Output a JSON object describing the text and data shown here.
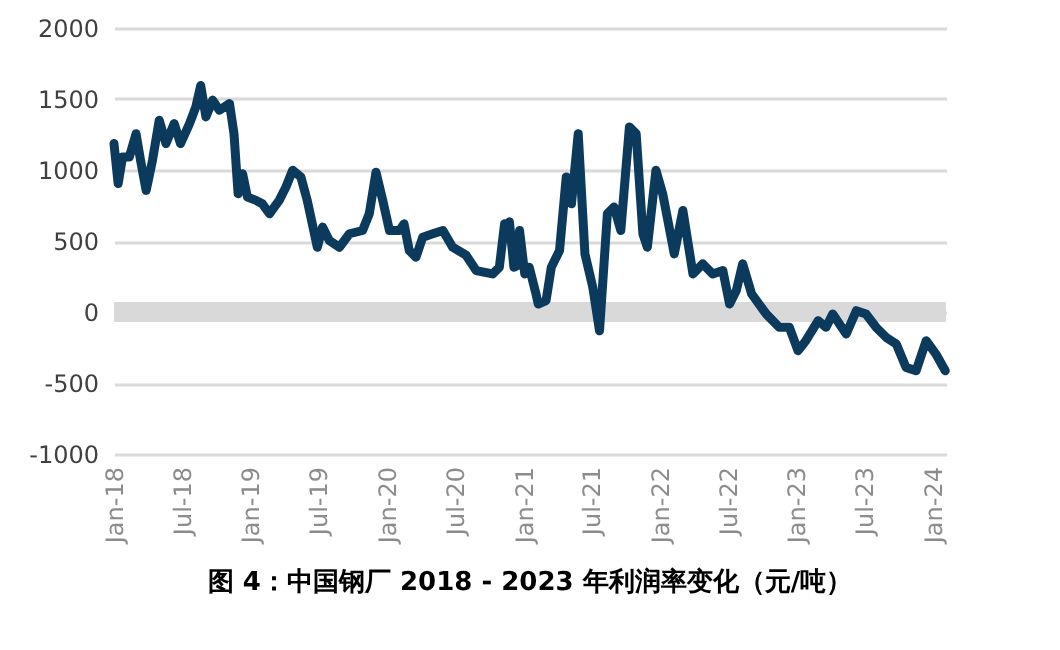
{
  "chart_data": {
    "type": "line",
    "title": "图 4：中国钢厂 2018 - 2023 年利润率变化（元/吨）",
    "x": [
      "2018-01-01",
      "2018-01-12",
      "2018-01-24",
      "2018-02-11",
      "2018-03-01",
      "2018-03-13",
      "2018-03-28",
      "2018-04-14",
      "2018-05-02",
      "2018-05-20",
      "2018-06-11",
      "2018-06-28",
      "2018-07-22",
      "2018-08-08",
      "2018-08-21",
      "2018-09-04",
      "2018-09-22",
      "2018-10-10",
      "2018-11-06",
      "2018-11-18",
      "2018-11-29",
      "2018-12-11",
      "2018-12-24",
      "2019-01-16",
      "2019-02-02",
      "2019-02-21",
      "2019-03-19",
      "2019-04-06",
      "2019-04-24",
      "2019-05-16",
      "2019-06-02",
      "2019-06-29",
      "2019-07-13",
      "2019-07-31",
      "2019-08-27",
      "2019-09-23",
      "2019-10-28",
      "2019-11-15",
      "2019-12-03",
      "2019-12-21",
      "2020-01-08",
      "2020-02-04",
      "2020-02-16",
      "2020-03-01",
      "2020-03-19",
      "2020-04-06",
      "2020-05-03",
      "2020-05-30",
      "2020-06-25",
      "2020-07-31",
      "2020-08-27",
      "2020-10-10",
      "2020-10-28",
      "2020-11-11",
      "2020-11-19",
      "2020-11-24",
      "2020-12-06",
      "2020-12-17",
      "2020-12-21",
      "2021-01-04",
      "2021-01-16",
      "2021-02-03",
      "2021-02-09",
      "2021-03-02",
      "2021-03-16",
      "2021-04-07",
      "2021-04-25",
      "2021-05-09",
      "2021-05-27",
      "2021-06-14",
      "2021-07-05",
      "2021-07-23",
      "2021-08-13",
      "2021-08-31",
      "2021-09-18",
      "2021-10-11",
      "2021-10-29",
      "2021-11-16",
      "2021-11-28",
      "2021-12-21",
      "2022-01-08",
      "2022-02-08",
      "2022-03-03",
      "2022-03-30",
      "2022-04-25",
      "2022-05-22",
      "2022-06-18",
      "2022-07-06",
      "2022-07-24",
      "2022-08-10",
      "2022-09-03",
      "2022-10-12",
      "2022-11-16",
      "2022-12-13",
      "2023-01-05",
      "2023-01-26",
      "2023-02-28",
      "2023-03-21",
      "2023-04-08",
      "2023-05-14",
      "2023-06-10",
      "2023-07-06",
      "2023-08-02",
      "2023-08-29",
      "2023-09-25",
      "2023-10-21",
      "2023-11-17",
      "2023-12-14",
      "2024-01-09",
      "2024-02-03"
    ],
    "series": [
      {
        "color": "#0b3a5c",
        "values": [
          1186,
          904,
          1092,
          1092,
          1256,
          1068,
          856,
          1068,
          1350,
          1186,
          1327,
          1186,
          1327,
          1445,
          1595,
          1374,
          1492,
          1421,
          1468,
          1256,
          833,
          974,
          809,
          786,
          762,
          692,
          786,
          880,
          998,
          951,
          786,
          456,
          598,
          504,
          456,
          551,
          574,
          692,
          984,
          786,
          574,
          574,
          621,
          433,
          386,
          527,
          551,
          574,
          456,
          400,
          292,
          268,
          315,
          621,
          580,
          635,
          315,
          330,
          574,
          268,
          315,
          127,
          56,
          80,
          315,
          433,
          951,
          762,
          1256,
          409,
          174,
          -132,
          692,
          739,
          574,
          1303,
          1256,
          551,
          456,
          998,
          833,
          409,
          715,
          268,
          339,
          268,
          292,
          56,
          151,
          339,
          127,
          -14,
          -108,
          -108,
          -273,
          -202,
          -61,
          -108,
          -14,
          -155,
          9,
          -14,
          -108,
          -179,
          -226,
          -390,
          -414,
          -202,
          -296,
          -414
        ]
      }
    ],
    "xlim": [
      "2018-01-01",
      "2024-02-05"
    ],
    "xticks": [
      {
        "value": "2018-01-01",
        "label": "Jan-18"
      },
      {
        "value": "2018-07-01",
        "label": "Jul-18"
      },
      {
        "value": "2019-01-01",
        "label": "Jan-19"
      },
      {
        "value": "2019-07-01",
        "label": "Jul-19"
      },
      {
        "value": "2020-01-01",
        "label": "Jan-20"
      },
      {
        "value": "2020-07-01",
        "label": "Jul-20"
      },
      {
        "value": "2021-01-01",
        "label": "Jan-21"
      },
      {
        "value": "2021-07-01",
        "label": "Jul-21"
      },
      {
        "value": "2022-01-01",
        "label": "Jan-22"
      },
      {
        "value": "2022-07-01",
        "label": "Jul-22"
      },
      {
        "value": "2023-01-01",
        "label": "Jan-23"
      },
      {
        "value": "2023-07-01",
        "label": "Jul-23"
      },
      {
        "value": "2024-01-01",
        "label": "Jan-24"
      }
    ],
    "ylim": [
      -1000,
      2000
    ],
    "yticks": [
      -1000,
      -500,
      0,
      500,
      1000,
      1500,
      2000
    ],
    "grid": "y",
    "ref_lines": [
      {
        "axis": "y",
        "value": 0,
        "color": "#d9d9d9"
      }
    ]
  }
}
